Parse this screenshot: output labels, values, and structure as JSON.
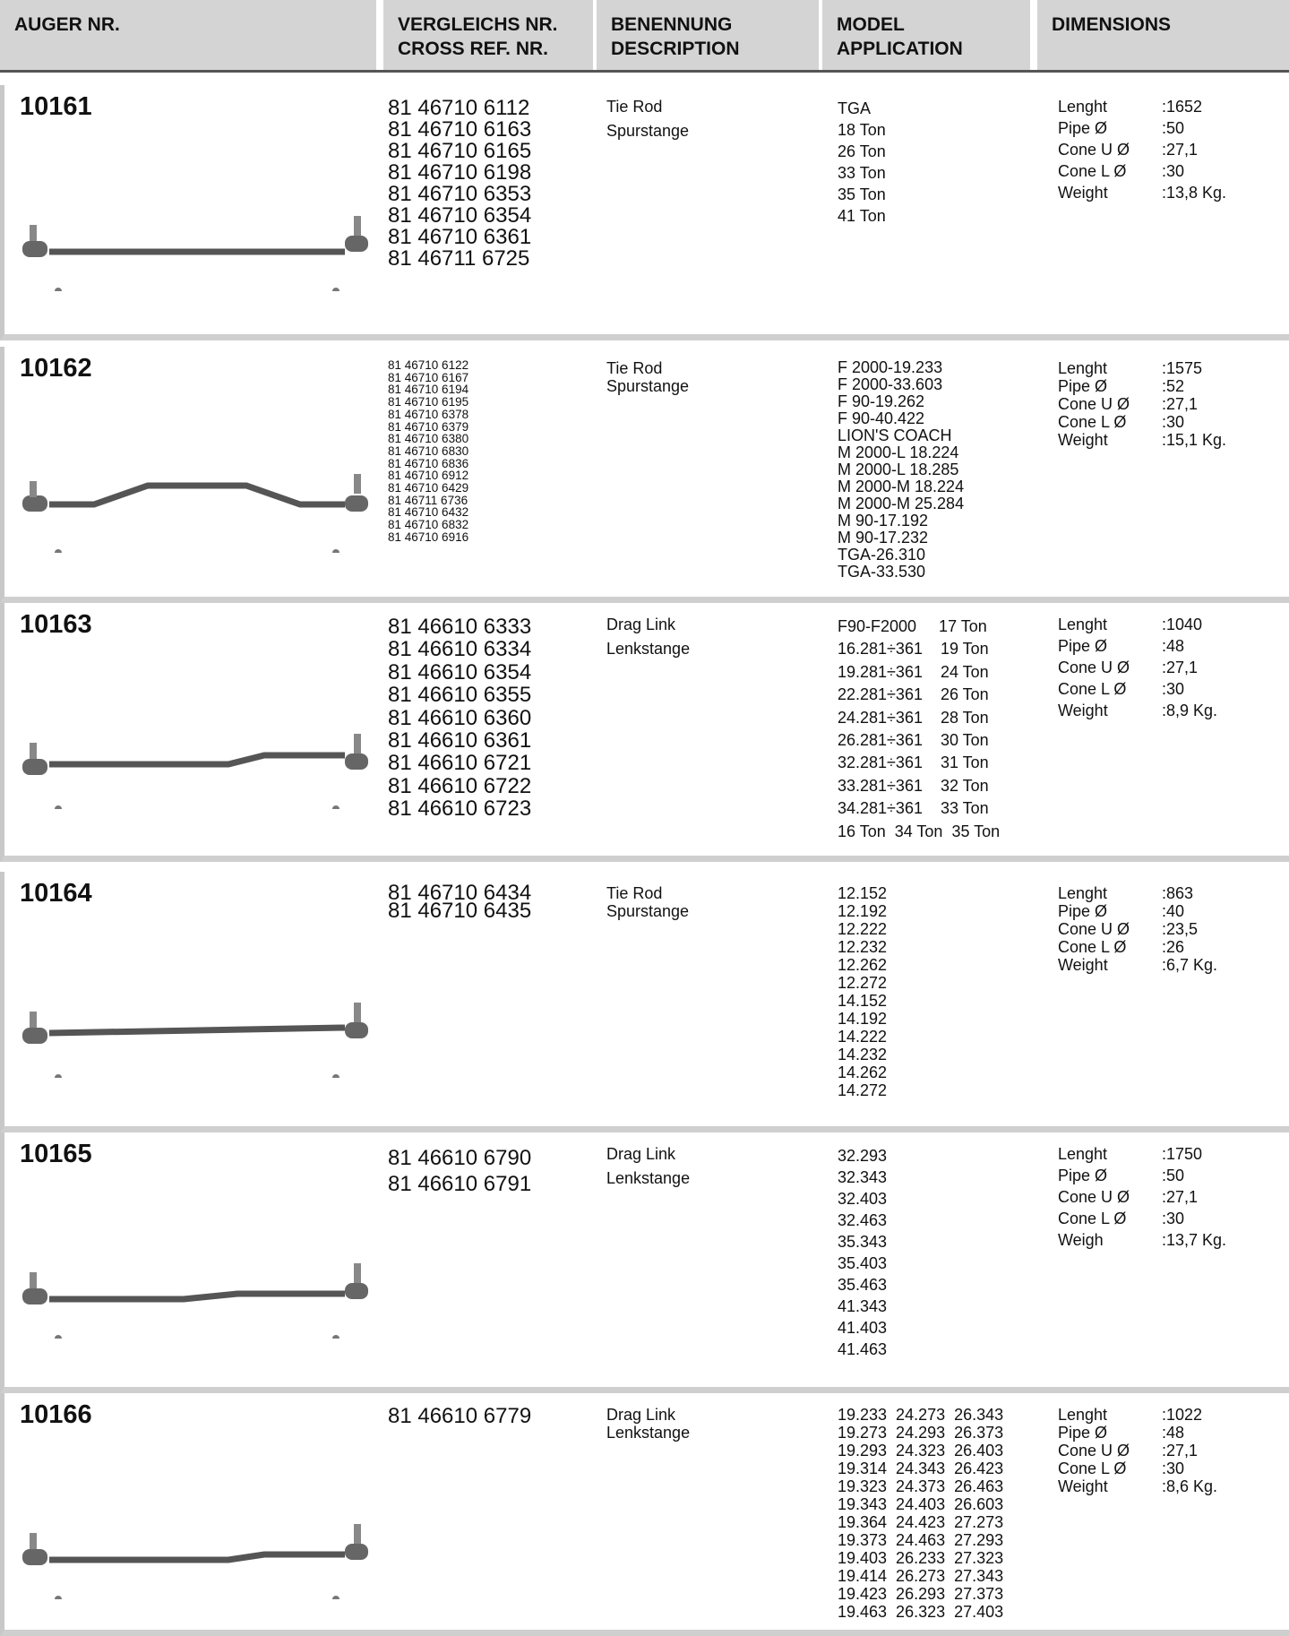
{
  "header": {
    "columns": [
      [
        "AUGER NR."
      ],
      [
        "VERGLEICHS NR.",
        "CROSS REF. NR."
      ],
      [
        "BENENNUNG",
        "DESCRIPTION"
      ],
      [
        "MODEL",
        "APPLICATION"
      ],
      [
        "DIMENSIONS"
      ]
    ]
  },
  "rows": [
    {
      "number": "10161",
      "cross_refs": [
        "81 46710 6112",
        "81 46710 6163",
        "81 46710 6165",
        "81 46710 6198",
        "81 46710 6353",
        "81 46710 6354",
        "81 46710 6361",
        "81 46711 6725"
      ],
      "description": [
        "Tie Rod",
        "Spurstange"
      ],
      "application": [
        "TGA",
        "18 Ton",
        "26 Ton",
        "33 Ton",
        "35 Ton",
        "41 Ton"
      ],
      "dimensions": [
        [
          "Lenght",
          ":1652"
        ],
        [
          "Pipe Ø",
          ":50"
        ],
        [
          "Cone U Ø",
          ":27,1"
        ],
        [
          "Cone L Ø",
          ":30"
        ],
        [
          "Weight",
          ":13,8 Kg."
        ]
      ]
    },
    {
      "number": "10162",
      "cross_refs": [
        "81 46710 6122",
        "81 46710 6167",
        "81 46710 6194",
        "81 46710 6195",
        "81 46710 6378",
        "81 46710 6379",
        "81 46710 6380",
        "81 46710 6830",
        "81 46710 6836",
        "81 46710 6912",
        "81 46710 6429",
        "81 46711 6736",
        "81 46710 6432",
        "81 46710 6832",
        "81 46710 6916"
      ],
      "description": [
        "Tie Rod",
        "Spurstange"
      ],
      "application": [
        "F 2000-19.233",
        "F 2000-33.603",
        "F 90-19.262",
        "F 90-40.422",
        "LION'S COACH",
        "M 2000-L 18.224",
        "M 2000-L 18.285",
        "M 2000-M 18.224",
        "M 2000-M 25.284",
        "M 90-17.192",
        "M 90-17.232",
        "TGA-26.310",
        "TGA-33.530"
      ],
      "dimensions": [
        [
          "Lenght",
          ":1575"
        ],
        [
          "Pipe Ø",
          ":52"
        ],
        [
          "Cone U Ø",
          ":27,1"
        ],
        [
          "Cone L Ø",
          ":30"
        ],
        [
          "Weight",
          ":15,1 Kg."
        ]
      ]
    },
    {
      "number": "10163",
      "cross_refs": [
        "81 46610 6333",
        "81 46610 6334",
        "81 46610 6354",
        "81 46610 6355",
        "81 46610 6360",
        "81 46610 6361",
        "81 46610 6721",
        "81 46610 6722",
        "81 46610 6723"
      ],
      "description": [
        "Drag Link",
        "Lenkstange"
      ],
      "application": [
        "F90-F2000     17 Ton",
        "16.281÷361    19 Ton",
        "19.281÷361    24 Ton",
        "22.281÷361    26 Ton",
        "24.281÷361    28 Ton",
        "26.281÷361    30 Ton",
        "32.281÷361    31 Ton",
        "33.281÷361    32 Ton",
        "34.281÷361    33 Ton",
        "16 Ton  34 Ton  35 Ton"
      ],
      "dimensions": [
        [
          "Lenght",
          ":1040"
        ],
        [
          "Pipe Ø",
          ":48"
        ],
        [
          "Cone U Ø",
          ":27,1"
        ],
        [
          "Cone L Ø",
          ":30"
        ],
        [
          "Weight",
          ":8,9 Kg."
        ]
      ]
    },
    {
      "number": "10164",
      "cross_refs": [
        "81 46710 6434",
        "81 46710 6435"
      ],
      "description": [
        "Tie Rod",
        "Spurstange"
      ],
      "application": [
        "12.152",
        "12.192",
        "12.222",
        "12.232",
        "12.262",
        "12.272",
        "14.152",
        "14.192",
        "14.222",
        "14.232",
        "14.262",
        "14.272"
      ],
      "dimensions": [
        [
          "Lenght",
          ":863"
        ],
        [
          "Pipe Ø",
          ":40"
        ],
        [
          "Cone U Ø",
          ":23,5"
        ],
        [
          "Cone L Ø",
          ":26"
        ],
        [
          "Weight",
          ":6,7 Kg."
        ]
      ]
    },
    {
      "number": "10165",
      "cross_refs": [
        "81 46610 6790",
        "81 46610 6791"
      ],
      "description": [
        "Drag Link",
        "Lenkstange"
      ],
      "application": [
        "32.293",
        "32.343",
        "32.403",
        "32.463",
        "35.343",
        "35.403",
        "35.463",
        "41.343",
        "41.403",
        "41.463"
      ],
      "dimensions": [
        [
          "Lenght",
          ":1750"
        ],
        [
          "Pipe Ø",
          ":50"
        ],
        [
          "Cone U Ø",
          ":27,1"
        ],
        [
          "Cone L Ø",
          ":30"
        ],
        [
          "Weigh",
          ":13,7 Kg."
        ]
      ]
    },
    {
      "number": "10166",
      "cross_refs": [
        "81 46610 6779"
      ],
      "description": [
        "Drag Link",
        "Lenkstange"
      ],
      "application": [
        "19.233  24.273  26.343",
        "19.273  24.293  26.373",
        "19.293  24.323  26.403",
        "19.314  24.343  26.423",
        "19.323  24.373  26.463",
        "19.343  24.403  26.603",
        "19.364  24.423  27.273",
        "19.373  24.463  27.293",
        "19.403  26.233  27.323",
        "19.414  26.273  27.343",
        "19.423  26.293  27.373",
        "19.463  26.323  27.403"
      ],
      "dimensions": [
        [
          "Lenght",
          ":1022"
        ],
        [
          "Pipe Ø",
          ":48"
        ],
        [
          "Cone U Ø",
          ":27,1"
        ],
        [
          "Cone L Ø",
          ":30"
        ],
        [
          "Weight",
          ":8,6 Kg."
        ]
      ]
    }
  ]
}
